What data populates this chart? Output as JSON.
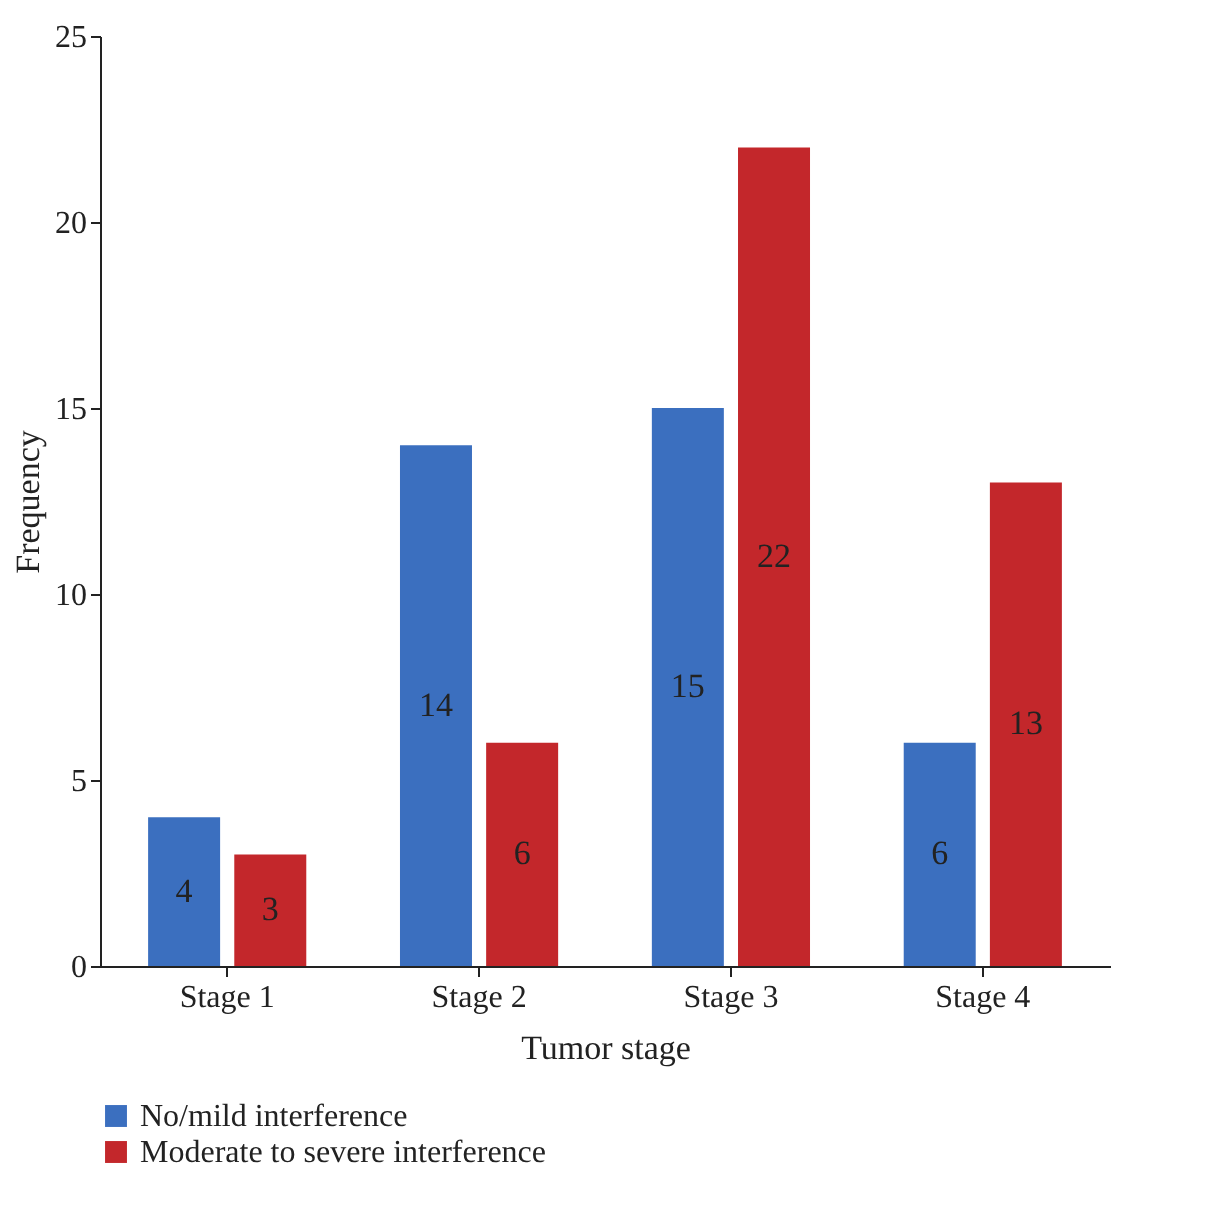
{
  "chart_data": {
    "type": "bar",
    "xlabel": "Tumor stage",
    "ylabel": "Frequency",
    "categories": [
      "Stage 1",
      "Stage 2",
      "Stage 3",
      "Stage 4"
    ],
    "series": [
      {
        "name": "No/mild interference",
        "color": "#3b6fbf",
        "values": [
          4,
          14,
          15,
          6
        ]
      },
      {
        "name": "Moderate to severe interference",
        "color": "#c3272b",
        "values": [
          3,
          6,
          22,
          13
        ]
      }
    ],
    "ylim": [
      0,
      25
    ],
    "yticks": [
      0,
      5,
      10,
      15,
      20,
      25
    ],
    "grid": false,
    "legend": "bottom",
    "data_labels": true
  }
}
